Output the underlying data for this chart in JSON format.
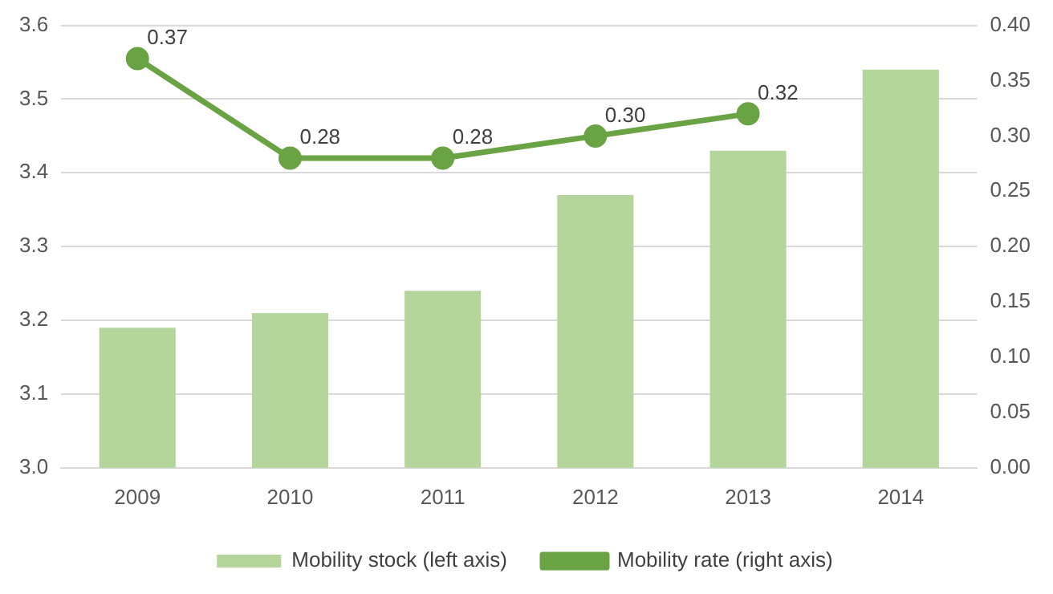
{
  "chart_data": {
    "type": "bar",
    "categories": [
      "2009",
      "2010",
      "2011",
      "2012",
      "2013",
      "2014"
    ],
    "series": [
      {
        "name": "Mobility stock (left axis)",
        "color": "#b4d59b",
        "values": [
          3.19,
          3.21,
          3.24,
          3.37,
          3.43,
          3.54
        ]
      },
      {
        "name": "Mobility rate (right axis)",
        "type": "line",
        "axis": "y2",
        "color": "#6aa343",
        "marker": "circle",
        "values": [
          0.37,
          0.28,
          0.28,
          0.3,
          0.32,
          null
        ],
        "value_labels": [
          "0.37",
          "0.28",
          "0.28",
          "0.30",
          "0.32",
          null
        ]
      }
    ],
    "ylim": [
      3.0,
      3.6
    ],
    "yticks": [
      {
        "value": 3.0,
        "label": "3.0"
      },
      3.1,
      3.2,
      3.3,
      3.4,
      3.5,
      3.6
    ],
    "y2lim": [
      0,
      0.4
    ],
    "y2ticks": [
      {
        "value": 0,
        "label": "0.00"
      },
      {
        "value": 0.05,
        "label": "0.05"
      },
      {
        "value": 0.1,
        "label": "0.10"
      },
      {
        "value": 0.15,
        "label": "0.15"
      },
      {
        "value": 0.2,
        "label": "0.20"
      },
      {
        "value": 0.25,
        "label": "0.25"
      },
      {
        "value": 0.3,
        "label": "0.30"
      },
      {
        "value": 0.35,
        "label": "0.35"
      },
      {
        "value": 0.4,
        "label": "0.40"
      }
    ],
    "grid": "y",
    "legend": "bottom"
  }
}
